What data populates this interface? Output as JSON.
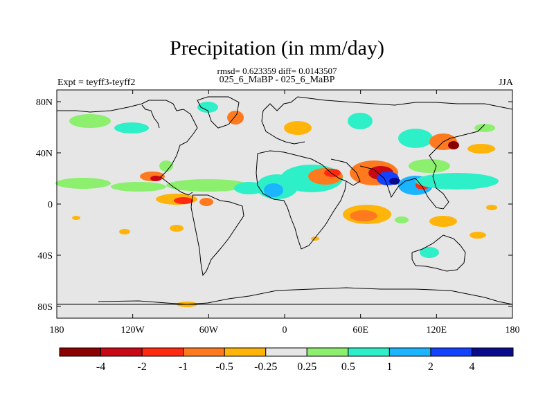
{
  "title": "Precipitation (in mm/day)",
  "stats": "rmsd= 0.623359 diff= 0.0143507",
  "case_label": "025_6_MaBP - 025_6_MaBP",
  "expt_label": "Expt = teyff3-teyff2",
  "season": "JJA",
  "lat_labels": [
    "80N",
    "40N",
    "0",
    "40S",
    "80S"
  ],
  "lat_values": [
    80,
    40,
    0,
    -40,
    -80
  ],
  "lon_labels": [
    "180",
    "120W",
    "60W",
    "0",
    "60E",
    "120E",
    "180"
  ],
  "lon_values": [
    -180,
    -120,
    -60,
    0,
    60,
    120,
    180
  ],
  "colorbar": {
    "labels": [
      "-4",
      "-2",
      "-1",
      "-0.5",
      "-0.25",
      "0.25",
      "0.5",
      "1",
      "2",
      "4"
    ],
    "colors": [
      "#8b0000",
      "#c80814",
      "#ff2a10",
      "#ff7a1e",
      "#ffb40a",
      "#e6e6e6",
      "#8cf06e",
      "#2ef0c8",
      "#1ab4ff",
      "#1440ff",
      "#0a0a8c"
    ]
  },
  "colors": {
    "ocean": "#e6e6e6",
    "coast": "#000000"
  }
}
